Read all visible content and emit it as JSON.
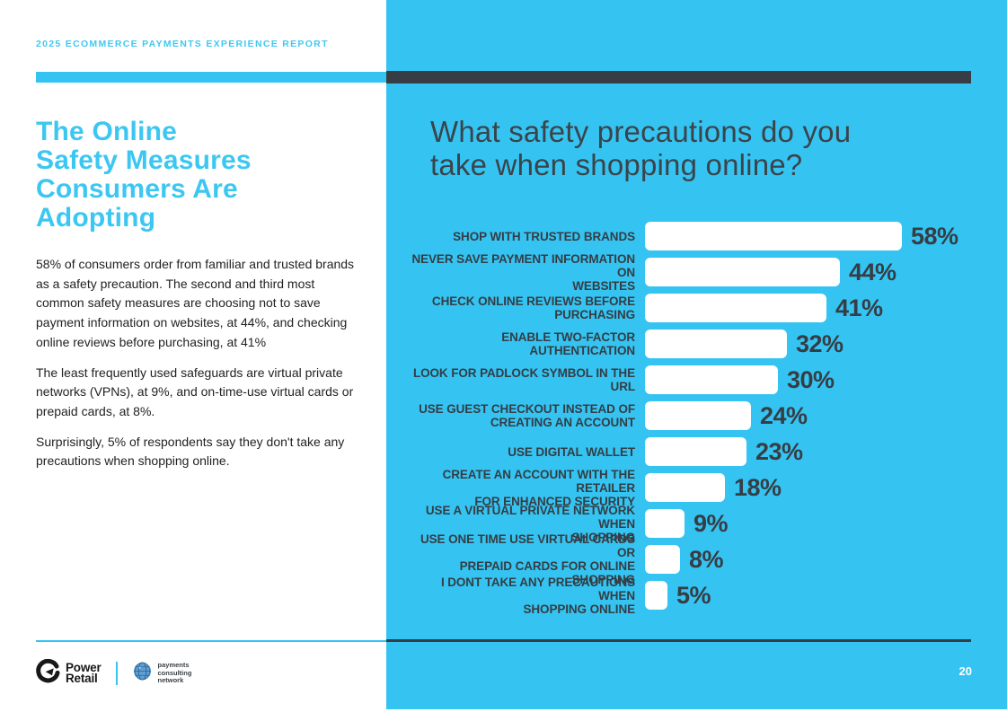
{
  "header": {
    "kicker": "2025 ECOMMERCE PAYMENTS EXPERIENCE REPORT"
  },
  "left": {
    "title": "The Online\nSafety Measures\nConsumers Are\nAdopting",
    "paragraphs": [
      "58% of consumers order from familiar and trusted brands\nas a safety precaution. The second and third most\ncommon safety measures are choosing not to save\npayment information on websites, at 44%, and checking\nonline reviews before purchasing, at 41%",
      "The least frequently used safeguards are virtual private\nnetworks (VPNs), at 9%, and on-time-use virtual cards or\nprepaid cards, at 8%.",
      "Surprisingly, 5% of respondents say they don't take any\nprecautions when shopping online."
    ]
  },
  "right": {
    "title": "What safety precautions do you\ntake when shopping online?"
  },
  "chart_data": {
    "type": "bar",
    "orientation": "horizontal",
    "title": "What safety precautions do you take when shopping online?",
    "unit": "%",
    "xlim": [
      0,
      58
    ],
    "legend": "none",
    "grid": false,
    "bar_color": "#ffffff",
    "label_color": "#363d45",
    "categories": [
      "SHOP WITH TRUSTED BRANDS",
      "NEVER SAVE PAYMENT INFORMATION ON WEBSITES",
      "CHECK ONLINE REVIEWS BEFORE PURCHASING",
      "ENABLE TWO-FACTOR AUTHENTICATION",
      "LOOK FOR PADLOCK SYMBOL IN THE URL",
      "USE GUEST CHECKOUT INSTEAD OF CREATING AN ACCOUNT",
      "USE DIGITAL WALLET",
      "CREATE AN ACCOUNT WITH THE RETAILER FOR ENHANCED SECURITY",
      "USE A VIRTUAL PRIVATE NETWORK WHEN SHOPPING",
      "USE ONE TIME USE VIRTUAL CARDS OR PREPAID CARDS FOR ONLINE SHOPPING",
      "I DONT TAKE ANY PRECAUTIONS WHEN SHOPPING ONLINE"
    ],
    "values": [
      58,
      44,
      41,
      32,
      30,
      24,
      23,
      18,
      9,
      8,
      5
    ],
    "rows": [
      {
        "label": "SHOP WITH TRUSTED BRANDS",
        "value": 58
      },
      {
        "label": "NEVER SAVE PAYMENT INFORMATION ON\nWEBSITES",
        "value": 44
      },
      {
        "label": "CHECK ONLINE REVIEWS BEFORE\nPURCHASING",
        "value": 41
      },
      {
        "label": "ENABLE TWO-FACTOR AUTHENTICATION",
        "value": 32
      },
      {
        "label": "LOOK FOR PADLOCK SYMBOL IN THE URL",
        "value": 30
      },
      {
        "label": "USE GUEST CHECKOUT INSTEAD OF\nCREATING AN ACCOUNT",
        "value": 24
      },
      {
        "label": "USE DIGITAL WALLET",
        "value": 23
      },
      {
        "label": "CREATE AN ACCOUNT WITH THE RETAILER\nFOR ENHANCED SECURITY",
        "value": 18
      },
      {
        "label": "USE A VIRTUAL PRIVATE NETWORK WHEN\nSHOPPING",
        "value": 9
      },
      {
        "label": "USE ONE TIME USE VIRTUAL CARDS OR\nPREPAID CARDS FOR ONLINE SHOPPING",
        "value": 8
      },
      {
        "label": "I DONT TAKE ANY PRECAUTIONS WHEN\nSHOPPING ONLINE",
        "value": 5
      }
    ]
  },
  "footer": {
    "power_retail": [
      "Power",
      "Retail"
    ],
    "pcn": "payments\nconsulting\nnetwork",
    "page_number": "20",
    "icons": [
      "power-retail-mark-icon",
      "globe-icon"
    ]
  },
  "colors": {
    "cyan": "#35c4f1",
    "title_cyan": "#3cc7f2",
    "charcoal": "#363d45",
    "bar_fill": "#ffffff"
  }
}
